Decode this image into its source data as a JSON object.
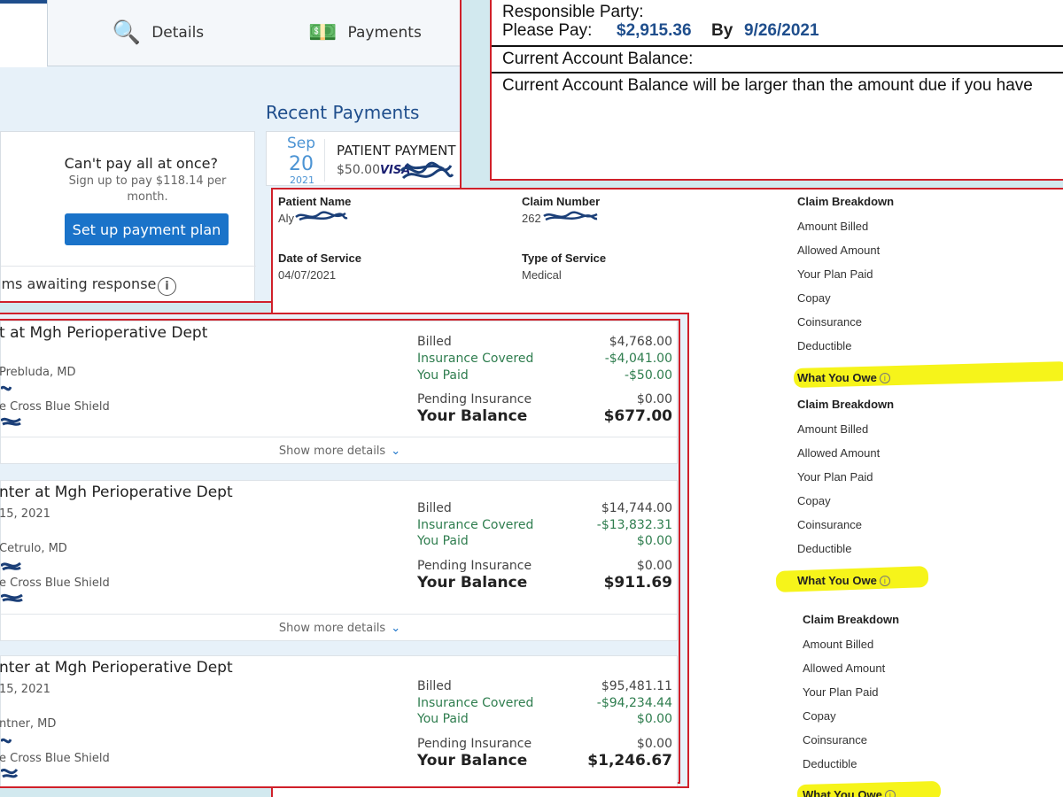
{
  "portal": {
    "tabs": [
      {
        "label": "Details",
        "icon": "magnifier-document-icon"
      },
      {
        "label": "Payments",
        "icon": "money-icon"
      }
    ],
    "recent_payments_title": "Recent Payments",
    "payment_plan": {
      "question": "Can't pay all at once?",
      "subtext": "Sign up to pay $118.14 per month.",
      "button": "Set up payment plan"
    },
    "claims_awaiting": "ims awaiting response",
    "recent_payment": {
      "month": "Sep",
      "day": "20",
      "year": "2021",
      "title": "PATIENT PAYMENT",
      "amount": "$50.00",
      "card": "VISA"
    }
  },
  "statement": {
    "responsible_party": "Responsible Party:",
    "please_pay_label": "Please Pay:",
    "amount": "$2,915.36",
    "by_label": "By",
    "due_date": "9/26/2021",
    "current_balance_label": "Current Account Balance:",
    "note": "Current Account Balance will be larger than the amount due if you have"
  },
  "claim": {
    "patient_name_label": "Patient Name",
    "patient_name": "Aly",
    "claim_number_label": "Claim Number",
    "claim_number": "262",
    "date_of_service_label": "Date of Service",
    "date_of_service": "04/07/2021",
    "type_of_service_label": "Type of Service",
    "type_of_service": "Medical",
    "breakdowns": [
      {
        "title": "Claim Breakdown",
        "items": [
          "Amount Billed",
          "Allowed Amount",
          "Your Plan Paid",
          "Copay",
          "Coinsurance",
          "Deductible"
        ],
        "owe": "What You Owe"
      },
      {
        "title": "Claim Breakdown",
        "items": [
          "Amount Billed",
          "Allowed Amount",
          "Your Plan Paid",
          "Copay",
          "Coinsurance",
          "Deductible"
        ],
        "owe": "What You Owe"
      },
      {
        "title": "Claim Breakdown",
        "items": [
          "Amount Billed",
          "Allowed Amount",
          "Your Plan Paid",
          "Copay",
          "Coinsurance",
          "Deductible"
        ],
        "owe": "What You Owe"
      }
    ]
  },
  "visits": [
    {
      "title": "t at Mgh Perioperative Dept",
      "date": "",
      "doctor": "Prebluda, MD",
      "insurance": "e Cross Blue Shield",
      "billed_label": "Billed",
      "billed": "$4,768.00",
      "covered_label": "Insurance Covered",
      "covered": "-$4,041.00",
      "paid_label": "You Paid",
      "paid": "-$50.00",
      "pending_label": "Pending Insurance",
      "pending": "$0.00",
      "balance_label": "Your Balance",
      "balance": "$677.00",
      "more": "Show more details"
    },
    {
      "title": "nter at Mgh Perioperative Dept",
      "date": "15, 2021",
      "doctor": "Cetrulo, MD",
      "insurance": "e Cross Blue Shield",
      "billed_label": "Billed",
      "billed": "$14,744.00",
      "covered_label": "Insurance Covered",
      "covered": "-$13,832.31",
      "paid_label": "You Paid",
      "paid": "$0.00",
      "pending_label": "Pending Insurance",
      "pending": "$0.00",
      "balance_label": "Your Balance",
      "balance": "$911.69",
      "more": "Show more details"
    },
    {
      "title": "nter at Mgh Perioperative Dept",
      "date": "15, 2021",
      "doctor": "ntner, MD",
      "insurance": "e Cross Blue Shield",
      "billed_label": "Billed",
      "billed": "$95,481.11",
      "covered_label": "Insurance Covered",
      "covered": "-$94,234.44",
      "paid_label": "You Paid",
      "paid": "$0.00",
      "pending_label": "Pending Insurance",
      "pending": "$0.00",
      "balance_label": "Your Balance",
      "balance": "$1,246.67",
      "more": ""
    }
  ],
  "colors": {
    "accent_blue": "#1f4e8c",
    "button_blue": "#1a73c9",
    "green_credit": "#2e7d4e",
    "highlight": "#f6f41a",
    "border_red": "#d0202a",
    "redaction_ink": "#1b3f78"
  }
}
